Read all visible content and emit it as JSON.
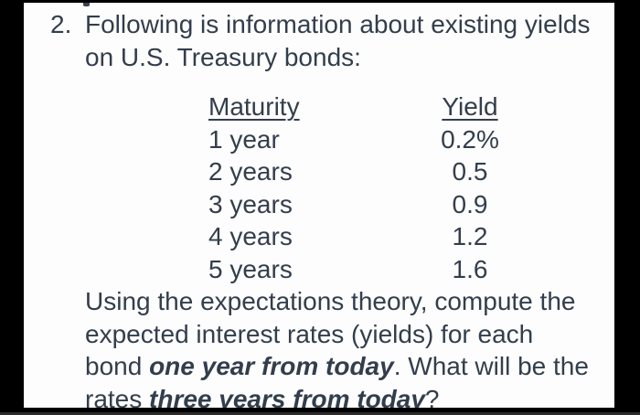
{
  "list_number": "2.",
  "intro": {
    "line1": "Following is information about existing yields",
    "line2": "on U.S. Treasury bonds:"
  },
  "table": {
    "headers": {
      "maturity": "Maturity",
      "yield": "Yield"
    },
    "rows": [
      {
        "maturity": "1 year",
        "yield": "0.2%"
      },
      {
        "maturity": "2 years",
        "yield": "0.5"
      },
      {
        "maturity": "3 years",
        "yield": "0.9"
      },
      {
        "maturity": "4 years",
        "yield": "1.2"
      },
      {
        "maturity": "5 years",
        "yield": "1.6"
      }
    ]
  },
  "task": {
    "line1": "Using the expectations theory, compute the",
    "line2": "expected interest rates (yields) for each",
    "line3_prefix": "bond ",
    "line3_bold": "one year from today",
    "line3_suffix": ". What will be the",
    "line4_prefix": "rates ",
    "line4_bold": "three years from today",
    "line4_suffix": "?"
  },
  "colors": {
    "text": "#333e4c",
    "page_background": "#fdfdfd",
    "frame": "#000000"
  }
}
